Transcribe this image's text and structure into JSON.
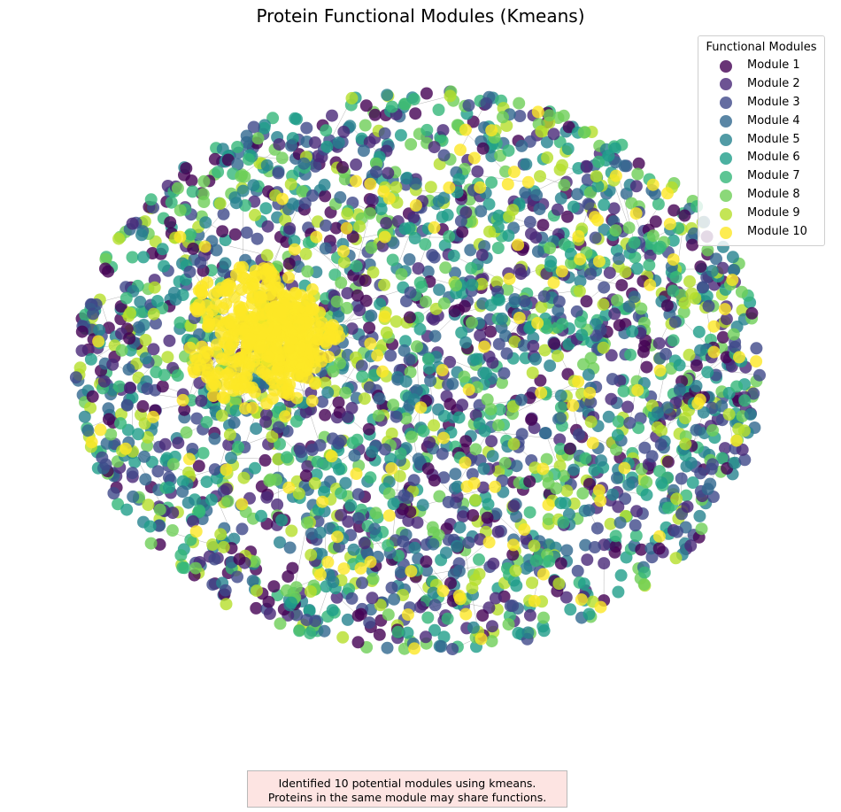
{
  "chart_data": {
    "type": "scatter",
    "title": "Protein Functional Modules (Kmeans)",
    "legend": {
      "title": "Functional Modules",
      "placement": "top-right",
      "entries": [
        "Module 1",
        "Module 2",
        "Module 3",
        "Module 4",
        "Module 5",
        "Module 6",
        "Module 7",
        "Module 8",
        "Module 9",
        "Module 10"
      ]
    },
    "series": [
      {
        "name": "Module 1",
        "color": "#440154"
      },
      {
        "name": "Module 2",
        "color": "#482878"
      },
      {
        "name": "Module 3",
        "color": "#3e4989"
      },
      {
        "name": "Module 4",
        "color": "#31688e"
      },
      {
        "name": "Module 5",
        "color": "#26828e"
      },
      {
        "name": "Module 6",
        "color": "#1f9e89"
      },
      {
        "name": "Module 7",
        "color": "#35b779"
      },
      {
        "name": "Module 8",
        "color": "#6ece58"
      },
      {
        "name": "Module 9",
        "color": "#b5de2b"
      },
      {
        "name": "Module 10",
        "color": "#fde725"
      }
    ],
    "axes": "off",
    "grid": false,
    "edge_color": "#808080",
    "note": {
      "line1": "Identified 10 potential modules using kmeans.",
      "line2": "Proteins in the same module may share functions."
    }
  }
}
